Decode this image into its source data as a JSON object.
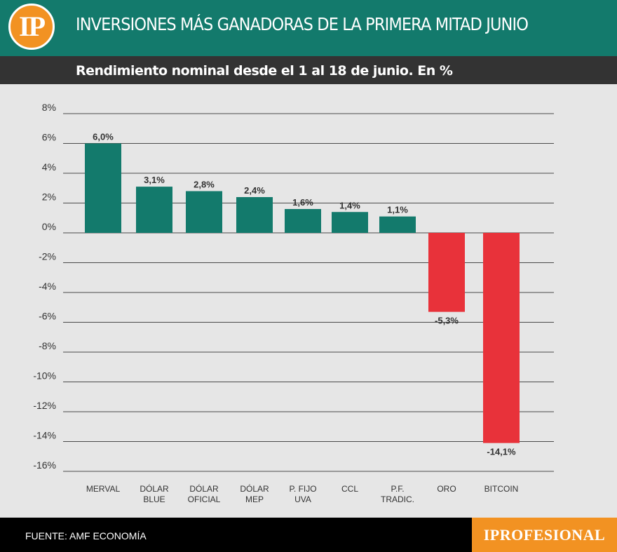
{
  "header": {
    "logo_text": "IP",
    "title": "INVERSIONES MÁS GANADORAS DE LA PRIMERA MITAD JUNIO",
    "subtitle": "Rendimiento nominal desde el 1 al 18 de junio. En %"
  },
  "footer": {
    "source": "FUENTE: AMF ECONOMÍA",
    "brand": "IPROFESIONAL"
  },
  "colors": {
    "positive": "#137a6c",
    "negative": "#e8323a",
    "header_bg": "#137a6c",
    "subheader_bg": "#333333",
    "plot_bg": "#e6e6e6",
    "accent": "#f29222"
  },
  "chart_data": {
    "type": "bar",
    "title": "INVERSIONES MÁS GANADORAS DE LA PRIMERA MITAD JUNIO",
    "subtitle": "Rendimiento nominal desde el 1 al 18 de junio. En %",
    "categories": [
      [
        "MERVAL"
      ],
      [
        "DÓLAR",
        "BLUE"
      ],
      [
        "DÓLAR",
        "OFICIAL"
      ],
      [
        "DÓLAR",
        "MEP"
      ],
      [
        "P. FIJO",
        "UVA"
      ],
      [
        "CCL"
      ],
      [
        "P.F.",
        "TRADIC."
      ],
      [
        "ORO"
      ],
      [
        "BITCOIN"
      ]
    ],
    "values": [
      6.0,
      3.1,
      2.8,
      2.4,
      1.6,
      1.4,
      1.1,
      -5.3,
      -14.1
    ],
    "value_labels": [
      "6,0%",
      "3,1%",
      "2,8%",
      "2,4%",
      "1,6%",
      "1,4%",
      "1,1%",
      "-5,3%",
      "-14,1%"
    ],
    "ylim": [
      -16,
      8
    ],
    "yticks": [
      8,
      6,
      4,
      2,
      0,
      -2,
      -4,
      -6,
      -8,
      -10,
      -12,
      -14,
      -16
    ],
    "ytick_labels": [
      "8%",
      "6%",
      "4%",
      "2%",
      "0%",
      "-2%",
      "-4%",
      "-6%",
      "-8%",
      "-10%",
      "-12%",
      "-14%",
      "-16%"
    ],
    "grid": true,
    "xlabel": "",
    "ylabel": ""
  }
}
